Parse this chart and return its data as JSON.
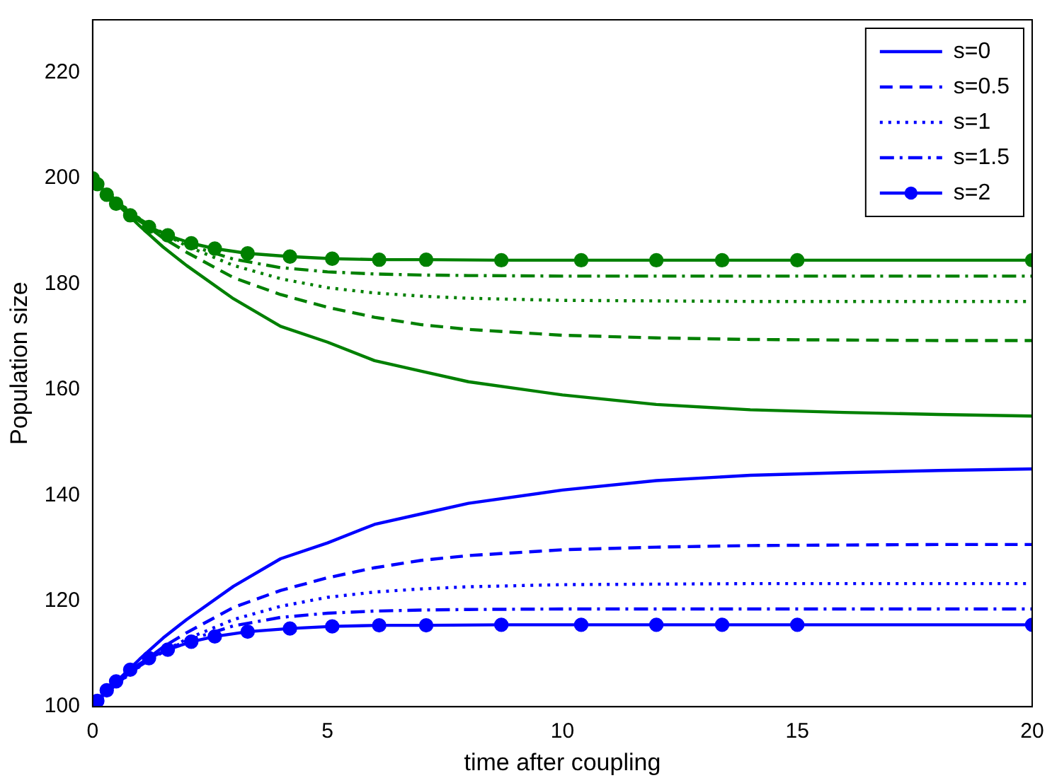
{
  "chart_data": {
    "type": "line",
    "xlabel": "time after coupling",
    "ylabel": "Population size",
    "xlim": [
      0,
      20
    ],
    "xticks": [
      0,
      5,
      10,
      15,
      20
    ],
    "ylim": [
      100,
      230
    ],
    "yticks": [
      100,
      120,
      140,
      160,
      180,
      200,
      220
    ],
    "grid": false,
    "legend": "top right",
    "x": [
      0,
      0.5,
      1,
      1.5,
      2,
      3,
      4,
      5,
      6,
      7,
      8,
      10,
      12,
      14,
      16,
      18,
      20
    ],
    "series": [
      {
        "name": "s=0",
        "color": "#0000ff",
        "line_style": "solid",
        "marker": "none",
        "values": [
          100,
          104.7,
          109,
          113,
          116.5,
          122.8,
          128,
          131,
          134.5,
          136.5,
          138.5,
          141,
          142.8,
          143.8,
          144.3,
          144.7,
          145
        ]
      },
      {
        "name": "s=0.5",
        "color": "#0000ff",
        "line_style": "dashed",
        "marker": "none",
        "values": [
          100,
          104.3,
          108,
          111.3,
          114,
          118.8,
          122,
          124.4,
          126.3,
          127.7,
          128.6,
          129.7,
          130.2,
          130.5,
          130.6,
          130.7,
          130.7
        ]
      },
      {
        "name": "s=1",
        "color": "#0000ff",
        "line_style": "dotted",
        "marker": "none",
        "values": [
          100,
          104.2,
          107.6,
          110.4,
          112.8,
          116.5,
          119,
          120.7,
          121.7,
          122.3,
          122.7,
          123.1,
          123.2,
          123.3,
          123.3,
          123.3,
          123.3
        ]
      },
      {
        "name": "s=1.5",
        "color": "#0000ff",
        "line_style": "dashdot",
        "marker": "none",
        "values": [
          100,
          104.3,
          107.7,
          110.4,
          112.5,
          115.3,
          116.9,
          117.7,
          118.1,
          118.3,
          118.4,
          118.5,
          118.5,
          118.5,
          118.5,
          118.5,
          118.5
        ]
      },
      {
        "name": "s=2",
        "color": "#0000ff",
        "line_style": "solid",
        "marker": "circle",
        "x": [
          0,
          0.1,
          0.3,
          0.5,
          0.8,
          1.2,
          1.6,
          2.1,
          2.6,
          3.3,
          4.2,
          5.1,
          6.1,
          7.1,
          8.7,
          10.4,
          12,
          13.4,
          15,
          20
        ],
        "values": [
          100,
          101.1,
          103.1,
          104.8,
          107,
          109.2,
          110.8,
          112.3,
          113.3,
          114.2,
          114.8,
          115.2,
          115.4,
          115.4,
          115.5,
          115.5,
          115.5,
          115.5,
          115.5,
          115.5
        ]
      },
      {
        "color": "#008000",
        "line_style": "solid",
        "marker": "none",
        "values": [
          200,
          195.3,
          191,
          187,
          183.5,
          177.2,
          172,
          169,
          165.5,
          163.5,
          161.5,
          159,
          157.2,
          156.2,
          155.7,
          155.3,
          155
        ]
      },
      {
        "color": "#008000",
        "line_style": "dashed",
        "marker": "none",
        "values": [
          200,
          195.7,
          192,
          188.7,
          186,
          181.2,
          178,
          175.6,
          173.7,
          172.3,
          171.4,
          170.3,
          169.8,
          169.5,
          169.4,
          169.3,
          169.3
        ]
      },
      {
        "color": "#008000",
        "line_style": "dotted",
        "marker": "none",
        "values": [
          200,
          195.8,
          192.4,
          189.6,
          187.2,
          183.5,
          181,
          179.3,
          178.3,
          177.7,
          177.3,
          176.9,
          176.8,
          176.7,
          176.7,
          176.7,
          176.7
        ]
      },
      {
        "color": "#008000",
        "line_style": "dashdot",
        "marker": "none",
        "values": [
          200,
          195.7,
          192.3,
          189.6,
          187.5,
          184.7,
          183.1,
          182.3,
          181.9,
          181.7,
          181.6,
          181.5,
          181.5,
          181.5,
          181.5,
          181.5,
          181.5
        ]
      },
      {
        "color": "#008000",
        "line_style": "solid",
        "marker": "circle",
        "x": [
          0,
          0.1,
          0.3,
          0.5,
          0.8,
          1.2,
          1.6,
          2.1,
          2.6,
          3.3,
          4.2,
          5.1,
          6.1,
          7.1,
          8.7,
          10.4,
          12,
          13.4,
          15,
          20
        ],
        "values": [
          200,
          198.9,
          196.9,
          195.2,
          193,
          190.8,
          189.2,
          187.7,
          186.7,
          185.8,
          185.2,
          184.8,
          184.6,
          184.6,
          184.5,
          184.5,
          184.5,
          184.5,
          184.5,
          184.5
        ]
      }
    ]
  }
}
